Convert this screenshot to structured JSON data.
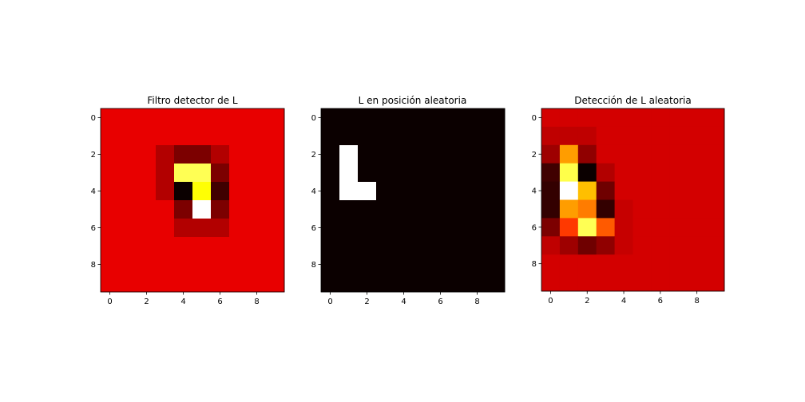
{
  "chart_data": [
    {
      "type": "heatmap",
      "title": "Filtro detector de L",
      "colormap": "hot",
      "xticks": [
        0,
        2,
        4,
        6,
        8
      ],
      "yticks": [
        0,
        2,
        4,
        6,
        8
      ],
      "xlim": [
        -0.5,
        9.5
      ],
      "ylim": [
        9.5,
        -0.5
      ],
      "values": [
        [
          0.33,
          0.33,
          0.33,
          0.33,
          0.33,
          0.33,
          0.33,
          0.33,
          0.33,
          0.33
        ],
        [
          0.33,
          0.33,
          0.33,
          0.33,
          0.33,
          0.33,
          0.33,
          0.33,
          0.33,
          0.33
        ],
        [
          0.33,
          0.33,
          0.33,
          0.25,
          0.17,
          0.17,
          0.25,
          0.33,
          0.33,
          0.33
        ],
        [
          0.33,
          0.33,
          0.33,
          0.25,
          0.83,
          0.83,
          0.17,
          0.33,
          0.33,
          0.33
        ],
        [
          0.33,
          0.33,
          0.33,
          0.25,
          0.0,
          0.75,
          0.08,
          0.33,
          0.33,
          0.33
        ],
        [
          0.33,
          0.33,
          0.33,
          0.33,
          0.17,
          1.0,
          0.17,
          0.33,
          0.33,
          0.33
        ],
        [
          0.33,
          0.33,
          0.33,
          0.33,
          0.25,
          0.25,
          0.25,
          0.33,
          0.33,
          0.33
        ],
        [
          0.33,
          0.33,
          0.33,
          0.33,
          0.33,
          0.33,
          0.33,
          0.33,
          0.33,
          0.33
        ],
        [
          0.33,
          0.33,
          0.33,
          0.33,
          0.33,
          0.33,
          0.33,
          0.33,
          0.33,
          0.33
        ],
        [
          0.33,
          0.33,
          0.33,
          0.33,
          0.33,
          0.33,
          0.33,
          0.33,
          0.33,
          0.33
        ]
      ]
    },
    {
      "type": "heatmap",
      "title": "L en posición aleatoria",
      "colormap": "hot",
      "xticks": [
        0,
        2,
        4,
        6,
        8
      ],
      "yticks": [
        0,
        2,
        4,
        6,
        8
      ],
      "xlim": [
        -0.5,
        9.5
      ],
      "ylim": [
        9.5,
        -0.5
      ],
      "values": [
        [
          0,
          0,
          0,
          0,
          0,
          0,
          0,
          0,
          0,
          0
        ],
        [
          0,
          0,
          0,
          0,
          0,
          0,
          0,
          0,
          0,
          0
        ],
        [
          0,
          1,
          0,
          0,
          0,
          0,
          0,
          0,
          0,
          0
        ],
        [
          0,
          1,
          0,
          0,
          0,
          0,
          0,
          0,
          0,
          0
        ],
        [
          0,
          1,
          1,
          0,
          0,
          0,
          0,
          0,
          0,
          0
        ],
        [
          0,
          0,
          0,
          0,
          0,
          0,
          0,
          0,
          0,
          0
        ],
        [
          0,
          0,
          0,
          0,
          0,
          0,
          0,
          0,
          0,
          0
        ],
        [
          0,
          0,
          0,
          0,
          0,
          0,
          0,
          0,
          0,
          0
        ],
        [
          0,
          0,
          0,
          0,
          0,
          0,
          0,
          0,
          0,
          0
        ],
        [
          0,
          0,
          0,
          0,
          0,
          0,
          0,
          0,
          0,
          0
        ]
      ]
    },
    {
      "type": "heatmap",
      "title": "Detección de L aleatoria",
      "colormap": "hot",
      "xticks": [
        0,
        2,
        4,
        6,
        8
      ],
      "yticks": [
        0,
        2,
        4,
        6,
        8
      ],
      "xlim": [
        -0.5,
        9.5
      ],
      "ylim": [
        9.5,
        -0.5
      ],
      "values": [
        [
          0.3,
          0.3,
          0.3,
          0.3,
          0.3,
          0.3,
          0.3,
          0.3,
          0.3,
          0.3
        ],
        [
          0.27,
          0.27,
          0.27,
          0.3,
          0.3,
          0.3,
          0.3,
          0.3,
          0.3,
          0.3
        ],
        [
          0.22,
          0.6,
          0.2,
          0.3,
          0.3,
          0.3,
          0.3,
          0.3,
          0.3,
          0.3
        ],
        [
          0.08,
          0.82,
          0.0,
          0.25,
          0.3,
          0.3,
          0.3,
          0.3,
          0.3,
          0.3
        ],
        [
          0.06,
          1.0,
          0.65,
          0.15,
          0.3,
          0.3,
          0.3,
          0.3,
          0.3,
          0.3
        ],
        [
          0.06,
          0.6,
          0.55,
          0.06,
          0.28,
          0.3,
          0.3,
          0.3,
          0.3,
          0.3
        ],
        [
          0.17,
          0.45,
          0.83,
          0.5,
          0.28,
          0.3,
          0.3,
          0.3,
          0.3,
          0.3
        ],
        [
          0.27,
          0.22,
          0.15,
          0.2,
          0.28,
          0.3,
          0.3,
          0.3,
          0.3,
          0.3
        ],
        [
          0.3,
          0.3,
          0.3,
          0.3,
          0.3,
          0.3,
          0.3,
          0.3,
          0.3,
          0.3
        ],
        [
          0.3,
          0.3,
          0.3,
          0.3,
          0.3,
          0.3,
          0.3,
          0.3,
          0.3,
          0.3
        ]
      ]
    }
  ]
}
